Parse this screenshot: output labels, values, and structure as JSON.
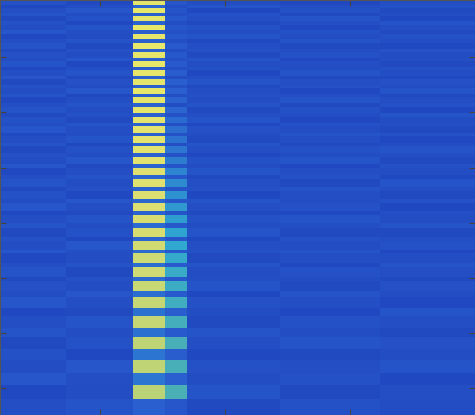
{
  "chart_data": {
    "type": "heatmap",
    "x_edges": [
      0,
      66,
      133,
      165,
      187,
      280,
      380,
      475
    ],
    "y_edges": [
      0,
      1,
      5,
      8.5,
      13.5,
      16.5,
      21.5,
      25.5,
      30.5,
      34.5,
      39.5,
      43,
      49,
      52,
      58,
      61,
      67,
      70,
      76,
      79,
      85,
      88,
      94,
      97,
      103,
      107,
      113,
      117,
      123,
      126.5,
      133.5,
      136.5,
      143.5,
      146.5,
      153.5,
      157.5,
      164.5,
      168.5,
      175.5,
      179,
      187,
      191,
      199,
      203,
      211,
      215,
      223,
      227.5,
      236.5,
      240.5,
      249.5,
      253,
      263,
      267,
      277,
      281,
      291,
      296.5,
      307.5,
      316,
      328,
      337,
      349,
      359.5,
      372.5,
      385,
      399,
      415
    ],
    "cells": [
      [
        0.22,
        0.25,
        0.3,
        0.24,
        0.21,
        0.23,
        0.2
      ],
      [
        0.24,
        0.21,
        0.93,
        0.26,
        0.22,
        0.2,
        0.23
      ],
      [
        0.2,
        0.23,
        0.32,
        0.22,
        0.25,
        0.22,
        0.24
      ],
      [
        0.23,
        0.26,
        0.94,
        0.25,
        0.2,
        0.24,
        0.21
      ],
      [
        0.25,
        0.22,
        0.3,
        0.23,
        0.24,
        0.21,
        0.22
      ],
      [
        0.21,
        0.24,
        0.93,
        0.27,
        0.23,
        0.25,
        0.2
      ],
      [
        0.24,
        0.2,
        0.31,
        0.22,
        0.21,
        0.23,
        0.25
      ],
      [
        0.22,
        0.25,
        0.94,
        0.26,
        0.24,
        0.2,
        0.23
      ],
      [
        0.26,
        0.23,
        0.29,
        0.24,
        0.22,
        0.24,
        0.21
      ],
      [
        0.2,
        0.22,
        0.93,
        0.27,
        0.25,
        0.22,
        0.24
      ],
      [
        0.23,
        0.25,
        0.3,
        0.23,
        0.2,
        0.25,
        0.22
      ],
      [
        0.25,
        0.21,
        0.94,
        0.28,
        0.23,
        0.21,
        0.2
      ],
      [
        0.21,
        0.24,
        0.31,
        0.22,
        0.24,
        0.23,
        0.25
      ],
      [
        0.24,
        0.22,
        0.93,
        0.27,
        0.21,
        0.24,
        0.22
      ],
      [
        0.22,
        0.26,
        0.3,
        0.24,
        0.25,
        0.2,
        0.23
      ],
      [
        0.25,
        0.2,
        0.94,
        0.28,
        0.22,
        0.23,
        0.21
      ],
      [
        0.2,
        0.23,
        0.29,
        0.23,
        0.24,
        0.22,
        0.24
      ],
      [
        0.23,
        0.25,
        0.93,
        0.29,
        0.2,
        0.25,
        0.22
      ],
      [
        0.26,
        0.21,
        0.31,
        0.22,
        0.23,
        0.21,
        0.2
      ],
      [
        0.21,
        0.24,
        0.93,
        0.3,
        0.25,
        0.23,
        0.24
      ],
      [
        0.24,
        0.22,
        0.3,
        0.24,
        0.21,
        0.24,
        0.22
      ],
      [
        0.22,
        0.26,
        0.94,
        0.3,
        0.23,
        0.2,
        0.25
      ],
      [
        0.25,
        0.2,
        0.3,
        0.23,
        0.24,
        0.23,
        0.21
      ],
      [
        0.2,
        0.23,
        0.93,
        0.31,
        0.22,
        0.25,
        0.23
      ],
      [
        0.23,
        0.25,
        0.31,
        0.22,
        0.25,
        0.21,
        0.24
      ],
      [
        0.25,
        0.22,
        0.93,
        0.32,
        0.21,
        0.24,
        0.2
      ],
      [
        0.21,
        0.24,
        0.3,
        0.24,
        0.23,
        0.22,
        0.25
      ],
      [
        0.24,
        0.21,
        0.92,
        0.33,
        0.25,
        0.2,
        0.22
      ],
      [
        0.22,
        0.25,
        0.31,
        0.23,
        0.2,
        0.24,
        0.23
      ],
      [
        0.26,
        0.23,
        0.92,
        0.34,
        0.24,
        0.22,
        0.21
      ],
      [
        0.2,
        0.22,
        0.3,
        0.24,
        0.22,
        0.25,
        0.24
      ],
      [
        0.23,
        0.25,
        0.92,
        0.35,
        0.21,
        0.23,
        0.2
      ],
      [
        0.25,
        0.2,
        0.31,
        0.23,
        0.25,
        0.21,
        0.22
      ],
      [
        0.21,
        0.24,
        0.91,
        0.36,
        0.23,
        0.24,
        0.25
      ],
      [
        0.24,
        0.22,
        0.3,
        0.24,
        0.2,
        0.22,
        0.23
      ],
      [
        0.22,
        0.26,
        0.91,
        0.38,
        0.24,
        0.25,
        0.21
      ],
      [
        0.26,
        0.21,
        0.31,
        0.25,
        0.22,
        0.2,
        0.24
      ],
      [
        0.2,
        0.23,
        0.9,
        0.4,
        0.25,
        0.23,
        0.22
      ],
      [
        0.23,
        0.25,
        0.32,
        0.26,
        0.21,
        0.24,
        0.2
      ],
      [
        0.25,
        0.22,
        0.9,
        0.42,
        0.23,
        0.21,
        0.25
      ],
      [
        0.21,
        0.24,
        0.31,
        0.25,
        0.24,
        0.25,
        0.23
      ],
      [
        0.24,
        0.2,
        0.89,
        0.44,
        0.2,
        0.23,
        0.21
      ],
      [
        0.22,
        0.26,
        0.32,
        0.26,
        0.25,
        0.22,
        0.24
      ],
      [
        0.26,
        0.23,
        0.89,
        0.46,
        0.23,
        0.24,
        0.2
      ],
      [
        0.2,
        0.21,
        0.31,
        0.25,
        0.21,
        0.2,
        0.23
      ],
      [
        0.23,
        0.25,
        0.88,
        0.47,
        0.24,
        0.25,
        0.22
      ],
      [
        0.25,
        0.22,
        0.33,
        0.27,
        0.22,
        0.23,
        0.25
      ],
      [
        0.21,
        0.24,
        0.88,
        0.49,
        0.25,
        0.21,
        0.21
      ],
      [
        0.24,
        0.2,
        0.32,
        0.26,
        0.2,
        0.24,
        0.23
      ],
      [
        0.22,
        0.26,
        0.87,
        0.5,
        0.23,
        0.22,
        0.24
      ],
      [
        0.26,
        0.23,
        0.33,
        0.27,
        0.24,
        0.25,
        0.2
      ],
      [
        0.2,
        0.22,
        0.86,
        0.51,
        0.21,
        0.23,
        0.22
      ],
      [
        0.23,
        0.25,
        0.34,
        0.28,
        0.25,
        0.2,
        0.25
      ],
      [
        0.25,
        0.21,
        0.86,
        0.52,
        0.22,
        0.24,
        0.23
      ],
      [
        0.21,
        0.24,
        0.33,
        0.27,
        0.23,
        0.22,
        0.21
      ],
      [
        0.24,
        0.22,
        0.85,
        0.53,
        0.25,
        0.21,
        0.24
      ],
      [
        0.22,
        0.26,
        0.34,
        0.28,
        0.2,
        0.25,
        0.22
      ],
      [
        0.26,
        0.23,
        0.84,
        0.54,
        0.24,
        0.23,
        0.2
      ],
      [
        0.2,
        0.21,
        0.35,
        0.29,
        0.22,
        0.2,
        0.25
      ],
      [
        0.23,
        0.25,
        0.84,
        0.55,
        0.21,
        0.24,
        0.23
      ],
      [
        0.25,
        0.22,
        0.35,
        0.28,
        0.25,
        0.22,
        0.21
      ],
      [
        0.21,
        0.24,
        0.83,
        0.56,
        0.23,
        0.25,
        0.24
      ],
      [
        0.24,
        0.2,
        0.36,
        0.29,
        0.2,
        0.21,
        0.22
      ],
      [
        0.22,
        0.26,
        0.83,
        0.56,
        0.24,
        0.23,
        0.25
      ],
      [
        0.26,
        0.23,
        0.36,
        0.3,
        0.22,
        0.24,
        0.2
      ],
      [
        0.2,
        0.22,
        0.82,
        0.57,
        0.25,
        0.21,
        0.23
      ],
      [
        0.23,
        0.25,
        0.3,
        0.26,
        0.21,
        0.24,
        0.22
      ]
    ],
    "color_range": [
      0,
      1
    ],
    "xlim": [
      0,
      475
    ],
    "ylim": [
      415,
      0
    ],
    "xticks": [
      100,
      225,
      350
    ],
    "yticks": [
      57,
      112,
      168,
      223,
      278,
      333,
      388
    ],
    "tick_labels": false
  }
}
